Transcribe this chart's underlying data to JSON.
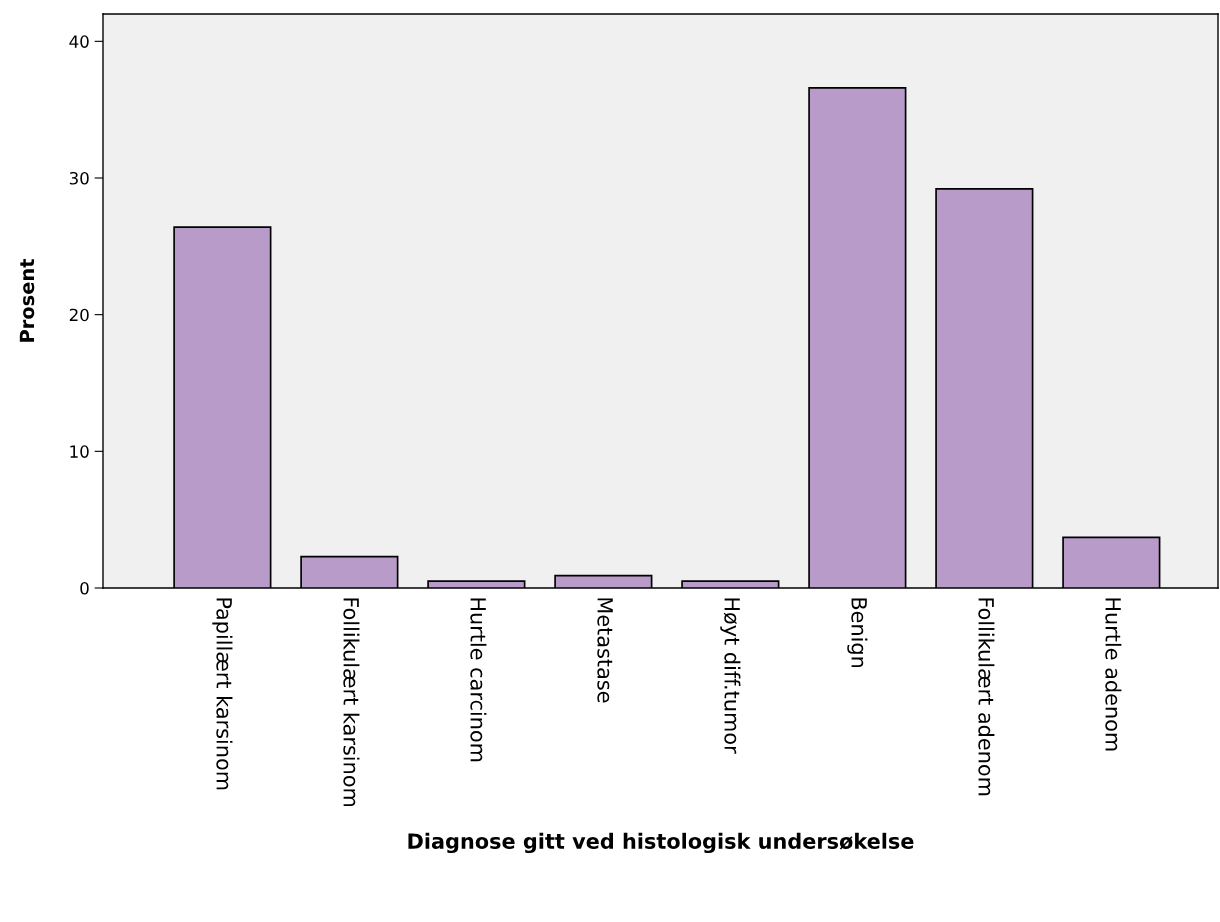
{
  "chart_data": {
    "type": "bar",
    "xlabel": "Diagnose gitt ved histologisk undersøkelse",
    "ylabel": "Prosent",
    "categories": [
      "Papillært karsinom",
      "Follikulært karsinom",
      "Hurtle carcinom",
      "Metastase",
      "Høyt diff.tumor",
      "Benign",
      "Follikulært adenom",
      "Hurtle adenom"
    ],
    "values": [
      26.4,
      2.3,
      0.5,
      0.9,
      0.5,
      36.6,
      29.2,
      3.7
    ],
    "color": "#b89bc9",
    "ylim": [
      0,
      42
    ],
    "yticks": [
      0,
      10,
      20,
      30,
      40
    ],
    "grid": false,
    "legend": false
  }
}
